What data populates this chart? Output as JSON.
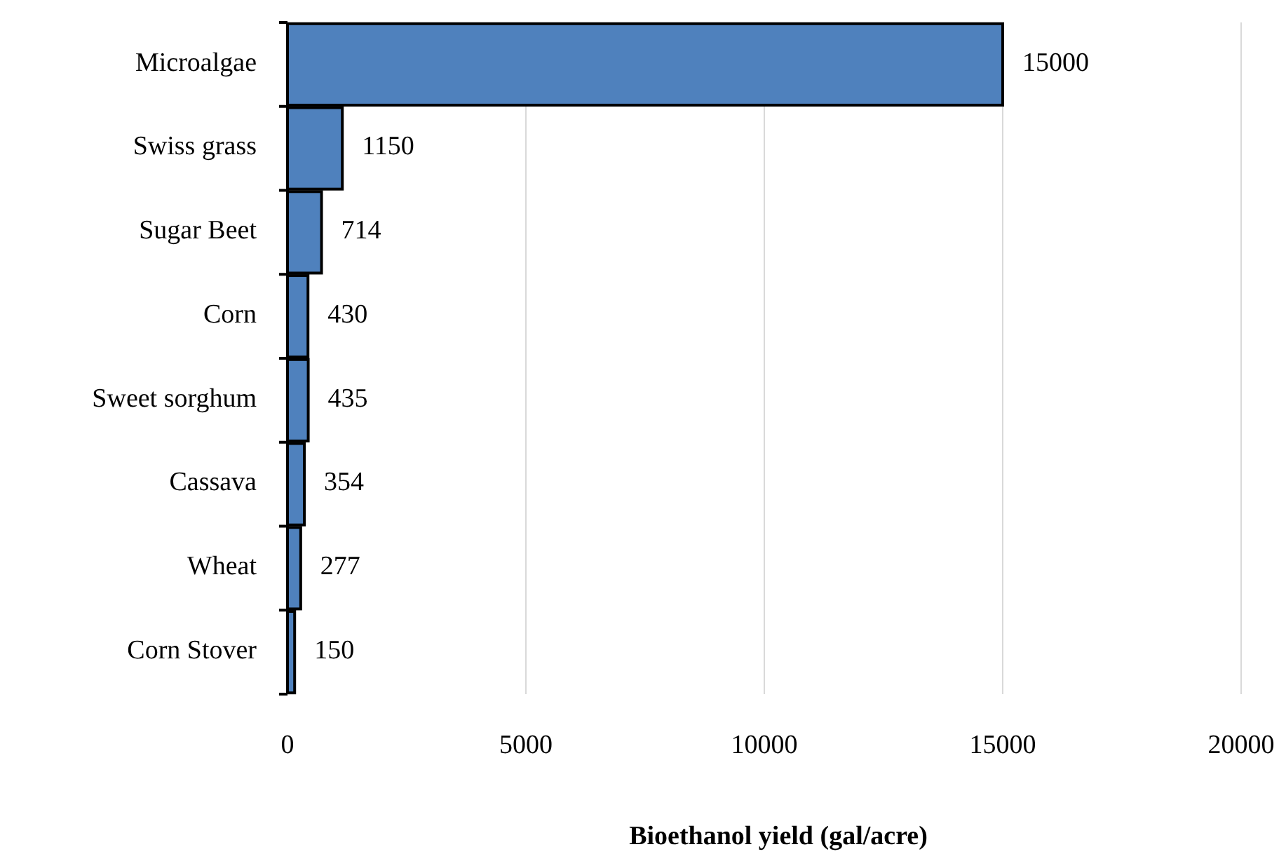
{
  "chart_data": {
    "type": "bar",
    "orientation": "horizontal",
    "xlabel": "Bioethanol yield (gal/acre)",
    "categories": [
      "Microalgae",
      "Swiss grass",
      "Sugar Beet",
      "Corn",
      "Sweet sorghum",
      "Cassava",
      "Wheat",
      "Corn Stover"
    ],
    "values": [
      15000,
      1150,
      714,
      430,
      435,
      354,
      277,
      150
    ],
    "color": "#4f81bd",
    "xlim": [
      0,
      20000
    ],
    "xticks": [
      0,
      5000,
      10000,
      15000,
      20000
    ],
    "grid": "x",
    "data_labels": true
  }
}
